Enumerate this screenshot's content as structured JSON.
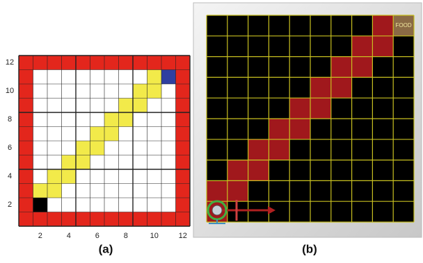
{
  "panel_a": {
    "x_labels": [
      "2",
      "4",
      "6",
      "8",
      "10",
      "12"
    ],
    "y_labels": [
      "12",
      "10",
      "8",
      "6",
      "4",
      "2"
    ],
    "caption": "(a)"
  },
  "panel_b": {
    "food_label": "FOOD",
    "caption": "(b)"
  }
}
